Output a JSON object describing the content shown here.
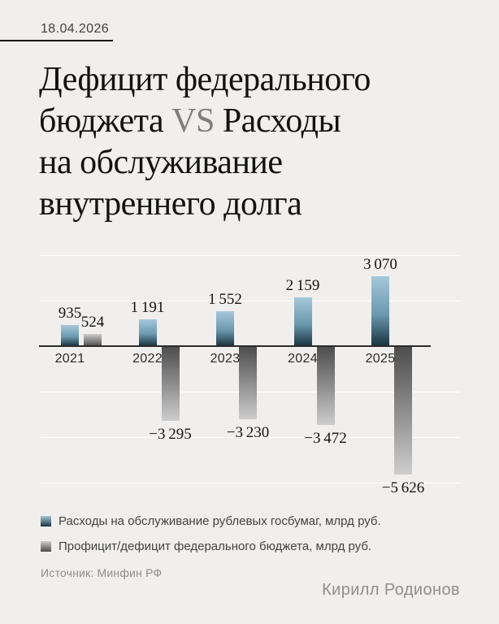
{
  "header": {
    "date": "18.04.2026"
  },
  "title": {
    "line1": "Дефицит федерального",
    "line2_pre": "бюджета ",
    "vs": "VS",
    "line2_post": " Расходы",
    "line3": "на обслуживание",
    "line4": "внутреннего долга",
    "vs_color": "#7d7d7d"
  },
  "chart_data": {
    "type": "bar",
    "title": "Дефицит федерального бюджета VS Расходы на обслуживание внутреннего долга",
    "categories": [
      "2021",
      "2022",
      "2023",
      "2024",
      "2025"
    ],
    "series": [
      {
        "name": "Расходы на обслуживание рублевых госбумаг, млрд руб.",
        "values": [
          935,
          1191,
          1552,
          2159,
          3070
        ],
        "color_light": "#a6c8da",
        "color_mid": "#6b98ae",
        "color_dark": "#18333f"
      },
      {
        "name": "Профицит/дефицит федерального бюджета, млрд руб.",
        "values": [
          524,
          -3295,
          -3230,
          -3472,
          -5626
        ],
        "color_light": "#cdcdcd",
        "color_dark": "#4c4c4c"
      }
    ],
    "ylim": [
      -6000,
      4000
    ],
    "gridline_step": 2000,
    "grid": true,
    "legend_position": "bottom",
    "value_labels": true,
    "xlabel": "",
    "ylabel": ""
  },
  "footer": {
    "source": "Источник: Минфин РФ",
    "author": "Кирилл Родионов"
  }
}
